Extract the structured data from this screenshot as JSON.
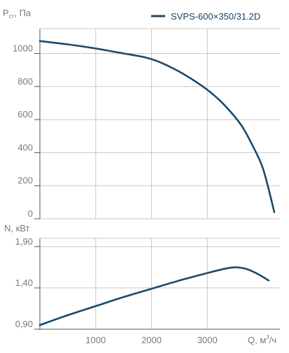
{
  "colors": {
    "series": "#1a4a6b",
    "grid": "#c8c8c8",
    "text": "#7a7a7a"
  },
  "legend": {
    "label": "SVPS-600×350/31.2D"
  },
  "chart_data": [
    {
      "type": "line",
      "ylabel_main": "P",
      "ylabel_sub": "ст",
      "ylabel_tail": ", Па",
      "xlim": [
        0,
        4300
      ],
      "ylim": [
        0,
        1150
      ],
      "y_ticks": [
        0,
        200,
        400,
        600,
        800,
        1000
      ],
      "x_grid": [
        1000,
        2000,
        3000
      ],
      "legend_position": "top-right",
      "series": [
        {
          "name": "SVPS-600×350/31.2D",
          "x": [
            0,
            500,
            1000,
            1500,
            1900,
            2200,
            2600,
            3000,
            3300,
            3600,
            3800,
            4000,
            4200
          ],
          "y": [
            1075,
            1055,
            1030,
            1000,
            975,
            940,
            870,
            780,
            690,
            570,
            450,
            300,
            40
          ]
        }
      ]
    },
    {
      "type": "line",
      "ylabel": "N, кВт",
      "xlabel_main": "Q, м",
      "xlabel_sup": "3",
      "xlabel_tail": "/ч",
      "xlim": [
        0,
        4300
      ],
      "ylim": [
        0.9,
        2.0
      ],
      "y_ticks": [
        0.9,
        1.4,
        1.9
      ],
      "y_tick_labels": [
        "0,90",
        "1,40",
        "1,90"
      ],
      "x_ticks": [
        1000,
        2000,
        3000
      ],
      "x_tick_labels": [
        "1000",
        "2000",
        "3000"
      ],
      "series": [
        {
          "name": "SVPS-600×350/31.2D",
          "x": [
            0,
            500,
            1000,
            1500,
            2000,
            2500,
            3000,
            3300,
            3500,
            3700,
            3900,
            4100
          ],
          "y": [
            0.95,
            1.07,
            1.18,
            1.29,
            1.39,
            1.49,
            1.58,
            1.63,
            1.65,
            1.63,
            1.57,
            1.49
          ]
        }
      ]
    }
  ]
}
